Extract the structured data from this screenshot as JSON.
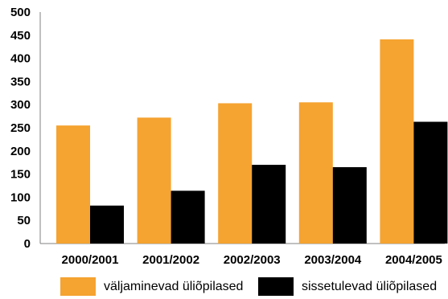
{
  "chart_data": {
    "type": "bar",
    "categories": [
      "2000/2001",
      "2001/2002",
      "2002/2003",
      "2003/2004",
      "2004/2005"
    ],
    "series": [
      {
        "name": "väljaminevad üliõpilased",
        "color": "#f5a331",
        "values": [
          255,
          272,
          303,
          305,
          441
        ]
      },
      {
        "name": "sissetulevad üliõpilased",
        "color": "#000000",
        "values": [
          82,
          114,
          170,
          165,
          263
        ]
      }
    ],
    "ylim": [
      0,
      500
    ],
    "yticks": [
      "0",
      "50",
      "100",
      "150",
      "200",
      "250",
      "300",
      "350",
      "400",
      "450",
      "500"
    ],
    "grid": false,
    "legend_position": "bottom",
    "title": "",
    "xlabel": "",
    "ylabel": ""
  }
}
